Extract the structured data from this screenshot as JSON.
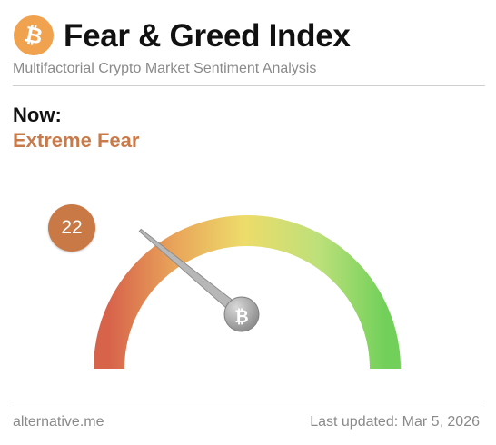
{
  "header": {
    "logo_icon": "bitcoin-icon",
    "logo_color": "#f0a24f",
    "title": "Fear & Greed Index",
    "subtitle": "Multifactorial Crypto Market Sentiment Analysis"
  },
  "status": {
    "now_label": "Now:",
    "classification": "Extreme Fear",
    "classification_color": "#c87a4b",
    "value": "22",
    "badge_color": "#c97945"
  },
  "gauge": {
    "min": 0,
    "max": 100,
    "value": 22,
    "hub_icon": "bitcoin-icon",
    "colors": {
      "start": "#d7634b",
      "mid_low": "#e9a55a",
      "middle": "#eddc6a",
      "mid_high": "#bde07a",
      "end": "#72d05a"
    }
  },
  "footer": {
    "source": "alternative.me",
    "updated_label": "Last updated: Mar 5, 2026"
  }
}
